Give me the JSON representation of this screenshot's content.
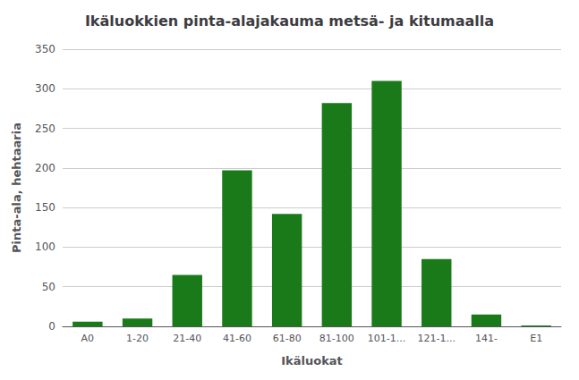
{
  "chart_data": {
    "type": "bar",
    "title": "Ikäluokkien pinta-alajakauma metsä- ja kitumaalla",
    "xlabel": "Ikäluokat",
    "ylabel": "Pinta-ala, hehtaaria",
    "categories": [
      "A0",
      "1-20",
      "21-40",
      "41-60",
      "61-80",
      "81-100",
      "101-1...",
      "121-1...",
      "141-",
      "E1"
    ],
    "values": [
      6,
      10,
      65,
      197,
      142,
      282,
      310,
      85,
      15,
      1
    ],
    "color": "#1a7a1a",
    "ylim": [
      0,
      350
    ],
    "yticks": [
      0,
      50,
      100,
      150,
      200,
      250,
      300,
      350
    ],
    "grid": true
  }
}
